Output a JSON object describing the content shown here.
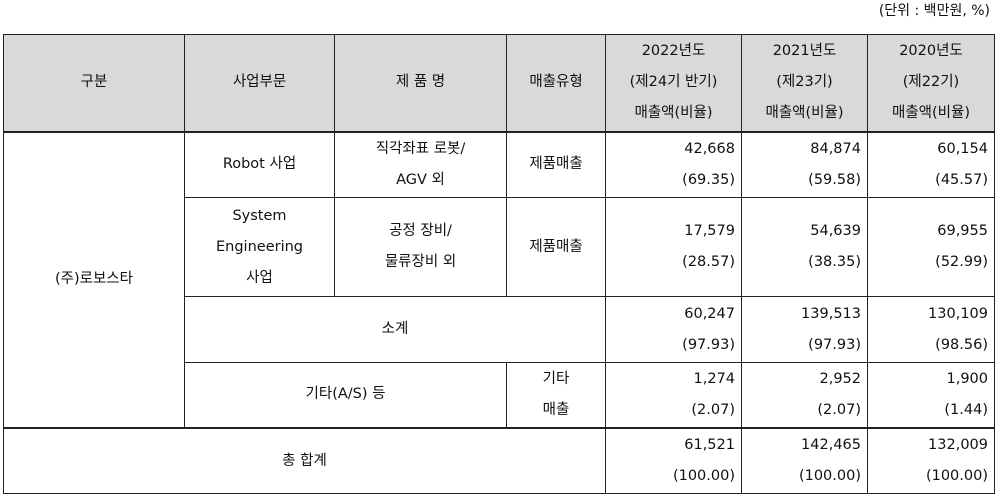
{
  "unit_note": "(단위 : 백만원, %)",
  "header": {
    "col_division": "구분",
    "col_business": "사업부문",
    "col_product": "제 품 명",
    "col_sales_type": "매출유형",
    "years": [
      {
        "year": "2022년도",
        "period": "(제24기 반기)",
        "metric": "매출액(비율)"
      },
      {
        "year": "2021년도",
        "period": "(제23기)",
        "metric": "매출액(비율)"
      },
      {
        "year": "2020년도",
        "period": "(제22기)",
        "metric": "매출액(비율)"
      }
    ]
  },
  "company": "(주)로보스타",
  "rows": [
    {
      "business": [
        "Robot 사업"
      ],
      "product": [
        "직각좌표 로봇/",
        "AGV 외"
      ],
      "sales_type": [
        "제품매출"
      ],
      "values": [
        {
          "amount": "42,668",
          "ratio": "(69.35)"
        },
        {
          "amount": "84,874",
          "ratio": "(59.58)"
        },
        {
          "amount": "60,154",
          "ratio": "(45.57)"
        }
      ]
    },
    {
      "business": [
        "System",
        "Engineering",
        "사업"
      ],
      "product": [
        "공정 장비/",
        "물류장비 외"
      ],
      "sales_type": [
        "제품매출"
      ],
      "values": [
        {
          "amount": "17,579",
          "ratio": "(28.57)"
        },
        {
          "amount": "54,639",
          "ratio": "(38.35)"
        },
        {
          "amount": "69,955",
          "ratio": "(52.99)"
        }
      ]
    }
  ],
  "subtotal": {
    "label": "소계",
    "values": [
      {
        "amount": "60,247",
        "ratio": "(97.93)"
      },
      {
        "amount": "139,513",
        "ratio": "(97.93)"
      },
      {
        "amount": "130,109",
        "ratio": "(98.56)"
      }
    ]
  },
  "other": {
    "label": "기타(A/S) 등",
    "sales_type": [
      "기타",
      "매출"
    ],
    "values": [
      {
        "amount": "1,274",
        "ratio": "(2.07)"
      },
      {
        "amount": "2,952",
        "ratio": "(2.07)"
      },
      {
        "amount": "1,900",
        "ratio": "(1.44)"
      }
    ]
  },
  "total": {
    "label": "총 합계",
    "values": [
      {
        "amount": "61,521",
        "ratio": "(100.00)"
      },
      {
        "amount": "142,465",
        "ratio": "(100.00)"
      },
      {
        "amount": "132,009",
        "ratio": "(100.00)"
      }
    ]
  }
}
